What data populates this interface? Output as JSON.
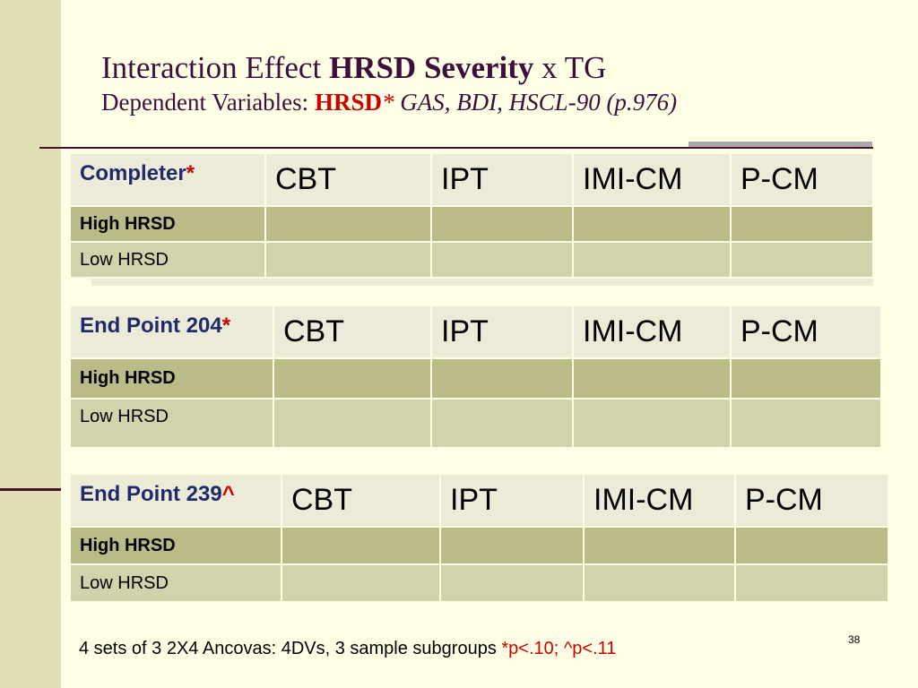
{
  "title": {
    "line1_prefix": "Interaction Effect ",
    "line1_bold": "HRSD Severity",
    "line1_suffix": " x TG",
    "line2_prefix": "Dependent Variables:   ",
    "line2_red": "HRSD",
    "line2_star": "*",
    "line2_italic": " GAS, BDI, HSCL-90 (p.976)"
  },
  "tables": [
    {
      "label": "Completer",
      "marker": "*",
      "columns": [
        "CBT",
        "IPT",
        "IMI-CM",
        "P-CM"
      ],
      "rows": [
        "High HRSD",
        "Low  HRSD"
      ]
    },
    {
      "label": "End Point 204",
      "marker": "*",
      "columns": [
        "CBT",
        "IPT",
        "IMI-CM",
        "P-CM"
      ],
      "rows": [
        "High  HRSD",
        "Low  HRSD"
      ]
    },
    {
      "label": "End Point 239",
      "marker": "^",
      "columns": [
        "CBT",
        "IPT",
        "IMI-CM",
        "P-CM"
      ],
      "rows": [
        "High  HRSD",
        "Low  HRSD"
      ]
    }
  ],
  "footnote": {
    "text": "4 sets of 3   2X4  Ancovas: 4DVs, 3 sample subgroups  ",
    "red": "*p<.10; ^p<.11"
  },
  "slide_number": "38",
  "colors": {
    "title": "#3d0f3d",
    "marker": "#cc0000",
    "label": "#1f2a6b",
    "header_bg": "#ecebd7",
    "high_bg": "#bbbb88",
    "low_bg": "#d3d3ab"
  }
}
